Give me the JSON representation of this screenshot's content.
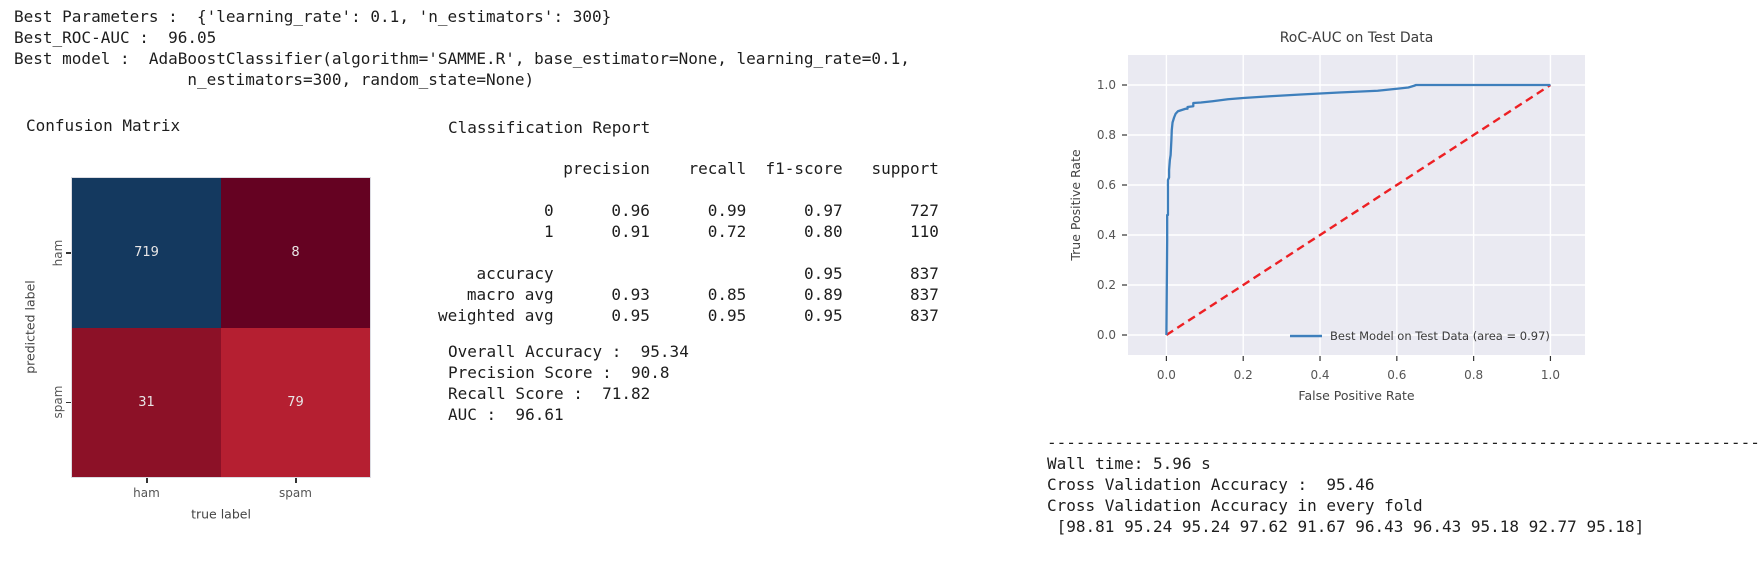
{
  "header_output": {
    "lines": [
      "Best Parameters :  {'learning_rate': 0.1, 'n_estimators': 300}",
      "Best_ROC-AUC :  96.05",
      "Best model :  AdaBoostClassifier(algorithm='SAMME.R', base_estimator=None, learning_rate=0.1,",
      "                  n_estimators=300, random_state=None)"
    ]
  },
  "classification_report": {
    "title": "Classification Report",
    "columns": [
      "precision",
      "recall",
      "f1-score",
      "support"
    ],
    "rows": [
      {
        "label": "0",
        "values": [
          "0.96",
          "0.99",
          "0.97",
          "727"
        ],
        "blank_before": false
      },
      {
        "label": "1",
        "values": [
          "0.91",
          "0.72",
          "0.80",
          "110"
        ],
        "blank_before": false
      },
      {
        "label": "accuracy",
        "values": [
          "",
          "",
          "0.95",
          "837"
        ],
        "blank_before": true
      },
      {
        "label": "macro avg",
        "values": [
          "0.93",
          "0.85",
          "0.89",
          "837"
        ],
        "blank_before": false
      },
      {
        "label": "weighted avg",
        "values": [
          "0.95",
          "0.95",
          "0.95",
          "837"
        ],
        "blank_before": false
      }
    ],
    "summary_metrics": [
      {
        "label": "Overall Accuracy",
        "value": "95.34"
      },
      {
        "label": "Precision Score",
        "value": "90.8"
      },
      {
        "label": "Recall Score",
        "value": "71.82"
      },
      {
        "label": "AUC",
        "value": "96.61"
      }
    ]
  },
  "cv_output": {
    "separator": "---------------------------------------------------------------------------------------------------------",
    "wall_time_label": "Wall time:",
    "wall_time_value": "5.96 s",
    "cv_accuracy_label": "Cross Validation Accuracy",
    "cv_accuracy_value": "95.46",
    "fold_line_label": "Cross Validation Accuracy in every fold",
    "fold_values": [
      98.81,
      95.24,
      95.24,
      97.62,
      91.67,
      96.43,
      96.43,
      95.18,
      92.77,
      95.18
    ]
  },
  "styles": {
    "cm_cell_colors": [
      [
        "#14395f",
        "#650222"
      ],
      [
        "#8c1127",
        "#b51f31"
      ]
    ],
    "cm_value_color": "#e8e6e6",
    "roc_plot_bg": "#eaeaf2",
    "roc_grid_color": "#ffffff",
    "roc_curve_color": "#3e7fbc",
    "roc_diagonal_color": "#ed2024",
    "console_text_color": "#1d1d1d",
    "axis_text_color": "#555555"
  },
  "chart_data": [
    {
      "type": "heatmap",
      "title": "Confusion Matrix",
      "xlabel": "true label",
      "ylabel": "predicted label",
      "x_categories": [
        "ham",
        "spam"
      ],
      "y_categories": [
        "ham",
        "spam"
      ],
      "values": [
        [
          719,
          8
        ],
        [
          31,
          79
        ]
      ]
    },
    {
      "type": "line",
      "title": "RoC-AUC on Test Data",
      "xlabel": "False Positive Rate",
      "ylabel": "True Positive Rate",
      "xlim": [
        -0.1,
        1.09
      ],
      "ylim": [
        -0.08,
        1.12
      ],
      "x_ticks": [
        0.0,
        0.2,
        0.4,
        0.6,
        0.8,
        1.0
      ],
      "y_ticks": [
        0.0,
        0.2,
        0.4,
        0.6,
        0.8,
        1.0
      ],
      "grid": true,
      "legend_position": "lower right",
      "series": [
        {
          "name": "Best Model on Test Data (area = 0.97)",
          "line_style": "solid",
          "color": "#3e7fbc",
          "in_legend": true,
          "points": [
            [
              0.0,
              0.0
            ],
            [
              0.002,
              0.38
            ],
            [
              0.002,
              0.48
            ],
            [
              0.004,
              0.48
            ],
            [
              0.004,
              0.62
            ],
            [
              0.007,
              0.63
            ],
            [
              0.007,
              0.66
            ],
            [
              0.009,
              0.7
            ],
            [
              0.011,
              0.72
            ],
            [
              0.013,
              0.78
            ],
            [
              0.014,
              0.82
            ],
            [
              0.016,
              0.85
            ],
            [
              0.02,
              0.87
            ],
            [
              0.024,
              0.885
            ],
            [
              0.03,
              0.895
            ],
            [
              0.04,
              0.9
            ],
            [
              0.05,
              0.905
            ],
            [
              0.055,
              0.905
            ],
            [
              0.055,
              0.912
            ],
            [
              0.07,
              0.915
            ],
            [
              0.07,
              0.928
            ],
            [
              0.09,
              0.93
            ],
            [
              0.12,
              0.935
            ],
            [
              0.16,
              0.943
            ],
            [
              0.2,
              0.948
            ],
            [
              0.27,
              0.955
            ],
            [
              0.35,
              0.962
            ],
            [
              0.45,
              0.97
            ],
            [
              0.55,
              0.977
            ],
            [
              0.6,
              0.985
            ],
            [
              0.63,
              0.99
            ],
            [
              0.645,
              0.997
            ],
            [
              0.65,
              1.0
            ],
            [
              1.0,
              1.0
            ]
          ]
        },
        {
          "name": "chance-diagonal",
          "line_style": "dashed",
          "color": "#ed2024",
          "in_legend": false,
          "points": [
            [
              0.0,
              0.0
            ],
            [
              1.0,
              1.0
            ]
          ]
        }
      ]
    }
  ]
}
